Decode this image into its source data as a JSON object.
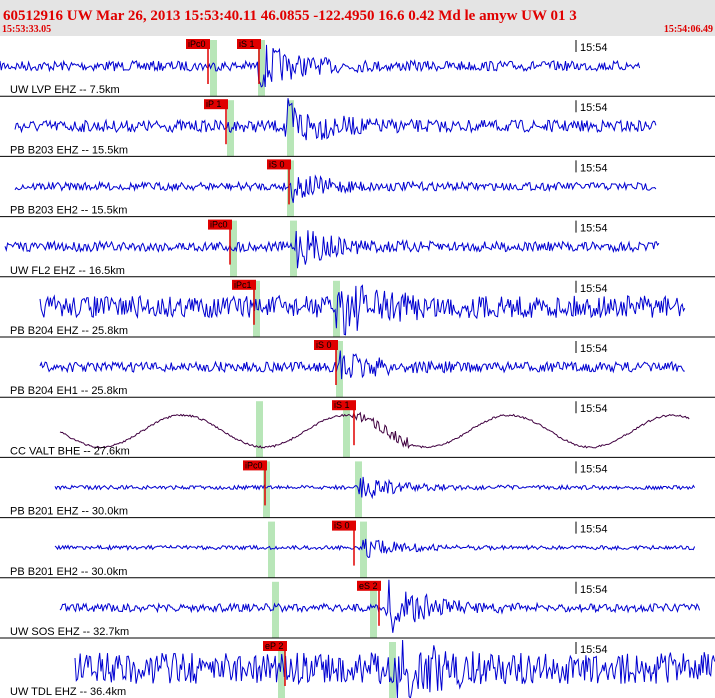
{
  "header": {
    "title": "60512916 UW Mar 26, 2013 15:53:40.11   46.0855 -122.4950 16.6 0.42 Md le amyw UW 01   3",
    "start_time": "15:53:33.05",
    "end_time": "15:54:06.49"
  },
  "traces": [
    {
      "label": "UW LVP EHZ -- 7.5km",
      "time_label": "15:54",
      "picks": [
        {
          "label": "iPc0"
        },
        {
          "label": "iS 1"
        }
      ]
    },
    {
      "label": "PB B203 EHZ -- 15.5km",
      "time_label": "15:54",
      "picks": [
        {
          "label": "iP 1"
        }
      ]
    },
    {
      "label": "PB B203 EH2 -- 15.5km",
      "time_label": "15:54",
      "picks": [
        {
          "label": "iS 0"
        }
      ]
    },
    {
      "label": "UW FL2 EHZ -- 16.5km",
      "time_label": "15:54",
      "picks": [
        {
          "label": "iPc0"
        }
      ]
    },
    {
      "label": "PB B204 EHZ -- 25.8km",
      "time_label": "15:54",
      "picks": [
        {
          "label": "iPc1"
        }
      ]
    },
    {
      "label": "PB B204 EH1 -- 25.8km",
      "time_label": "15:54",
      "picks": [
        {
          "label": "iS 0"
        }
      ]
    },
    {
      "label": "CC VALT BHE -- 27.6km",
      "time_label": "15:54",
      "picks": [
        {
          "label": "iS 1"
        }
      ]
    },
    {
      "label": "PB B201 EHZ -- 30.0km",
      "time_label": "15:54",
      "picks": [
        {
          "label": "iPc0"
        }
      ]
    },
    {
      "label": "PB B201 EH2 -- 30.0km",
      "time_label": "15:54",
      "picks": [
        {
          "label": "iS 0"
        }
      ]
    },
    {
      "label": "UW SOS EHZ -- 32.7km",
      "time_label": "15:54",
      "picks": [
        {
          "label": "eS 2"
        }
      ]
    },
    {
      "label": "UW TDL EHZ -- 36.4km",
      "time_label": "15:54",
      "picks": [
        {
          "label": "eP 2"
        }
      ]
    }
  ]
}
